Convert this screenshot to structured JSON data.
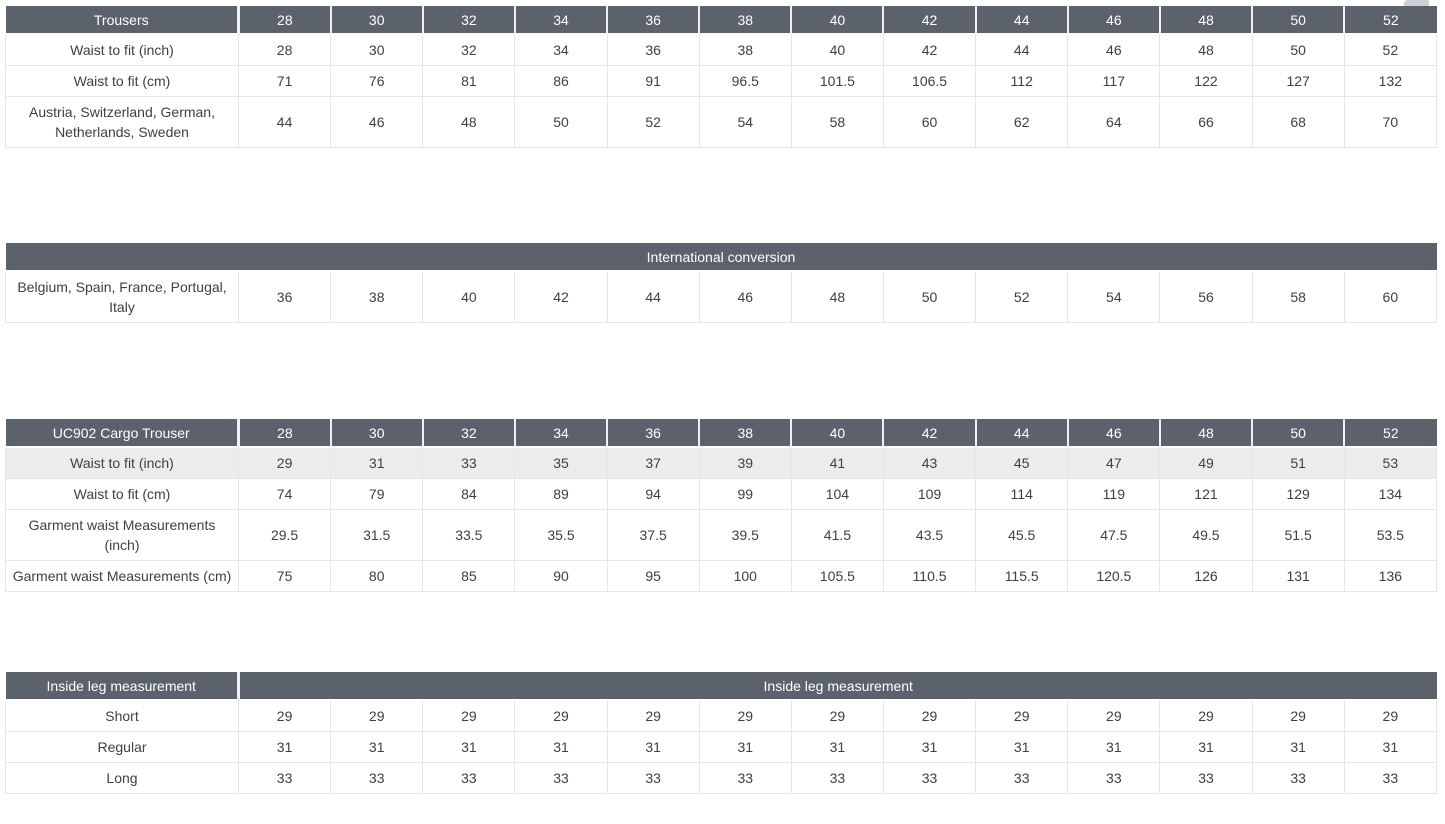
{
  "colors": {
    "header_bg": "#5c626b",
    "header_text": "#ffffff",
    "body_text": "#3d4045",
    "border": "#e3e6ec",
    "shaded_row": "#ececec",
    "header_gap": "#eef0f3",
    "corner_tab": "#ccd1d8"
  },
  "tables": [
    {
      "name": "trousers",
      "header": {
        "label": "Trousers",
        "columns": [
          "28",
          "30",
          "32",
          "34",
          "36",
          "38",
          "40",
          "42",
          "44",
          "46",
          "48",
          "50",
          "52"
        ]
      },
      "rows": [
        {
          "label": "Waist to fit (inch)",
          "values": [
            "28",
            "30",
            "32",
            "34",
            "36",
            "38",
            "40",
            "42",
            "44",
            "46",
            "48",
            "50",
            "52"
          ]
        },
        {
          "label": "Waist to fit (cm)",
          "values": [
            "71",
            "76",
            "81",
            "86",
            "91",
            "96.5",
            "101.5",
            "106.5",
            "112",
            "117",
            "122",
            "127",
            "132"
          ]
        },
        {
          "label": "Austria, Switzerland, German, Netherlands, Sweden",
          "values": [
            "44",
            "46",
            "48",
            "50",
            "52",
            "54",
            "58",
            "60",
            "62",
            "64",
            "66",
            "68",
            "70"
          ]
        }
      ]
    },
    {
      "name": "international-conversion",
      "header": {
        "merged_label": "International conversion"
      },
      "rows": [
        {
          "label": "Belgium, Spain, France, Portugal, Italy",
          "values": [
            "36",
            "38",
            "40",
            "42",
            "44",
            "46",
            "48",
            "50",
            "52",
            "54",
            "56",
            "58",
            "60"
          ]
        }
      ]
    },
    {
      "name": "uc902-cargo-trouser",
      "header": {
        "label": "UC902 Cargo Trouser",
        "columns": [
          "28",
          "30",
          "32",
          "34",
          "36",
          "38",
          "40",
          "42",
          "44",
          "46",
          "48",
          "50",
          "52"
        ]
      },
      "rows": [
        {
          "label": "Waist to fit (inch)",
          "shaded": true,
          "values": [
            "29",
            "31",
            "33",
            "35",
            "37",
            "39",
            "41",
            "43",
            "45",
            "47",
            "49",
            "51",
            "53"
          ]
        },
        {
          "label": "Waist to fit (cm)",
          "values": [
            "74",
            "79",
            "84",
            "89",
            "94",
            "99",
            "104",
            "109",
            "114",
            "119",
            "121",
            "129",
            "134"
          ]
        },
        {
          "label": "Garment waist Measurements (inch)",
          "values": [
            "29.5",
            "31.5",
            "33.5",
            "35.5",
            "37.5",
            "39.5",
            "41.5",
            "43.5",
            "45.5",
            "47.5",
            "49.5",
            "51.5",
            "53.5"
          ]
        },
        {
          "label": "Garment waist Measurements (cm)",
          "values": [
            "75",
            "80",
            "85",
            "90",
            "95",
            "100",
            "105.5",
            "110.5",
            "115.5",
            "120.5",
            "126",
            "131",
            "136"
          ]
        }
      ]
    },
    {
      "name": "inside-leg-measurement",
      "header": {
        "label": "Inside leg measurement",
        "merged_label": "Inside leg measurement"
      },
      "rows": [
        {
          "label": "Short",
          "values": [
            "29",
            "29",
            "29",
            "29",
            "29",
            "29",
            "29",
            "29",
            "29",
            "29",
            "29",
            "29",
            "29"
          ]
        },
        {
          "label": "Regular",
          "values": [
            "31",
            "31",
            "31",
            "31",
            "31",
            "31",
            "31",
            "31",
            "31",
            "31",
            "31",
            "31",
            "31"
          ]
        },
        {
          "label": "Long",
          "values": [
            "33",
            "33",
            "33",
            "33",
            "33",
            "33",
            "33",
            "33",
            "33",
            "33",
            "33",
            "33",
            "33"
          ]
        }
      ]
    }
  ]
}
